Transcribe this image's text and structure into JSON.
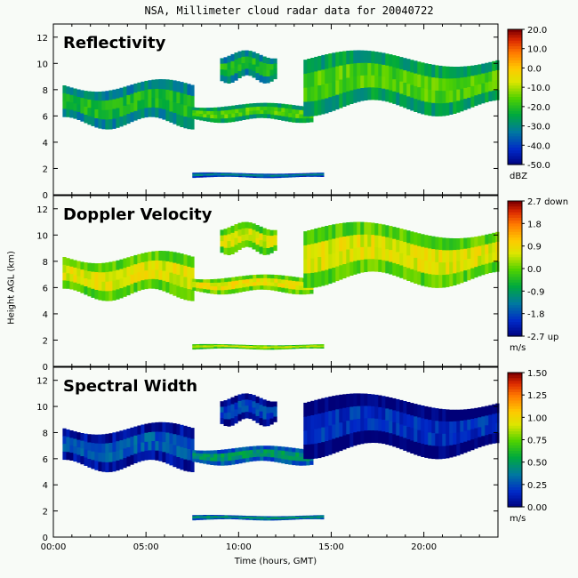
{
  "title": "NSA, Millimeter cloud radar data for 20040722",
  "ylabel": "Height AGL (km)",
  "xlabel": "Time (hours, GMT)",
  "chart_data": [
    {
      "type": "heatmap",
      "panel_title": "Reflectivity",
      "xlim": [
        0,
        24
      ],
      "ylim": [
        0,
        13
      ],
      "x_ticks": [
        "00:00",
        "05:00",
        "10:00",
        "15:00",
        "20:00"
      ],
      "y_ticks": [
        0,
        2,
        4,
        6,
        8,
        10,
        12
      ],
      "colorbar": {
        "ticks": [
          "20.0",
          "10.0",
          "0.0",
          "-10.0",
          "-20.0",
          "-30.0",
          "-40.0",
          "-50.0"
        ],
        "range": [
          -50,
          20
        ],
        "unit": "dBZ"
      },
      "features": [
        {
          "time_range_h": [
            0.5,
            7.5
          ],
          "height_km": [
            5,
            8.8
          ],
          "value_approx": -25
        },
        {
          "time_range_h": [
            7.5,
            14
          ],
          "height_km": [
            5.5,
            7
          ],
          "value_approx": -20
        },
        {
          "time_range_h": [
            9,
            12
          ],
          "height_km": [
            8.5,
            11
          ],
          "value_approx": -25
        },
        {
          "time_range_h": [
            13.5,
            24
          ],
          "height_km": [
            6,
            11
          ],
          "value_approx": -20
        },
        {
          "time_range_h": [
            7.5,
            14.5
          ],
          "height_km": [
            1.3,
            1.7
          ],
          "value_approx": -35
        }
      ]
    },
    {
      "type": "heatmap",
      "panel_title": "Doppler Velocity",
      "xlim": [
        0,
        24
      ],
      "ylim": [
        0,
        13
      ],
      "x_ticks": [
        "00:00",
        "05:00",
        "10:00",
        "15:00",
        "20:00"
      ],
      "y_ticks": [
        0,
        2,
        4,
        6,
        8,
        10,
        12
      ],
      "colorbar": {
        "ticks": [
          "2.7 down",
          "1.8",
          "0.9",
          "0.0",
          "-0.9",
          "-1.8",
          "-2.7 up"
        ],
        "range": [
          -2.7,
          2.7
        ],
        "unit": "m/s"
      },
      "features": [
        {
          "time_range_h": [
            0.5,
            7.5
          ],
          "height_km": [
            5,
            8.8
          ],
          "value_approx": 0.4
        },
        {
          "time_range_h": [
            7.5,
            14
          ],
          "height_km": [
            5.5,
            7
          ],
          "value_approx": 0.5
        },
        {
          "time_range_h": [
            9,
            12
          ],
          "height_km": [
            8.5,
            11
          ],
          "value_approx": 0.3
        },
        {
          "time_range_h": [
            13.5,
            24
          ],
          "height_km": [
            6,
            11
          ],
          "value_approx": 0.4
        },
        {
          "time_range_h": [
            7.5,
            14.5
          ],
          "height_km": [
            1.3,
            1.7
          ],
          "value_approx": 0.2
        }
      ]
    },
    {
      "type": "heatmap",
      "panel_title": "Spectral Width",
      "xlim": [
        0,
        24
      ],
      "ylim": [
        0,
        13
      ],
      "x_ticks": [
        "00:00",
        "05:00",
        "10:00",
        "15:00",
        "20:00"
      ],
      "y_ticks": [
        0,
        2,
        4,
        6,
        8,
        10,
        12
      ],
      "colorbar": {
        "ticks": [
          "1.50",
          "1.25",
          "1.00",
          "0.75",
          "0.50",
          "0.25",
          "0.00"
        ],
        "range": [
          0,
          1.5
        ],
        "unit": "m/s"
      },
      "features": [
        {
          "time_range_h": [
            0.5,
            7.5
          ],
          "height_km": [
            5,
            8.8
          ],
          "value_approx": 0.2
        },
        {
          "time_range_h": [
            7.5,
            14
          ],
          "height_km": [
            5.5,
            7
          ],
          "value_approx": 0.4
        },
        {
          "time_range_h": [
            9,
            12
          ],
          "height_km": [
            8.5,
            11
          ],
          "value_approx": 0.15
        },
        {
          "time_range_h": [
            13.5,
            24
          ],
          "height_km": [
            6,
            11
          ],
          "value_approx": 0.1
        },
        {
          "time_range_h": [
            7.5,
            14.5
          ],
          "height_km": [
            1.3,
            1.7
          ],
          "value_approx": 0.4
        }
      ]
    }
  ]
}
